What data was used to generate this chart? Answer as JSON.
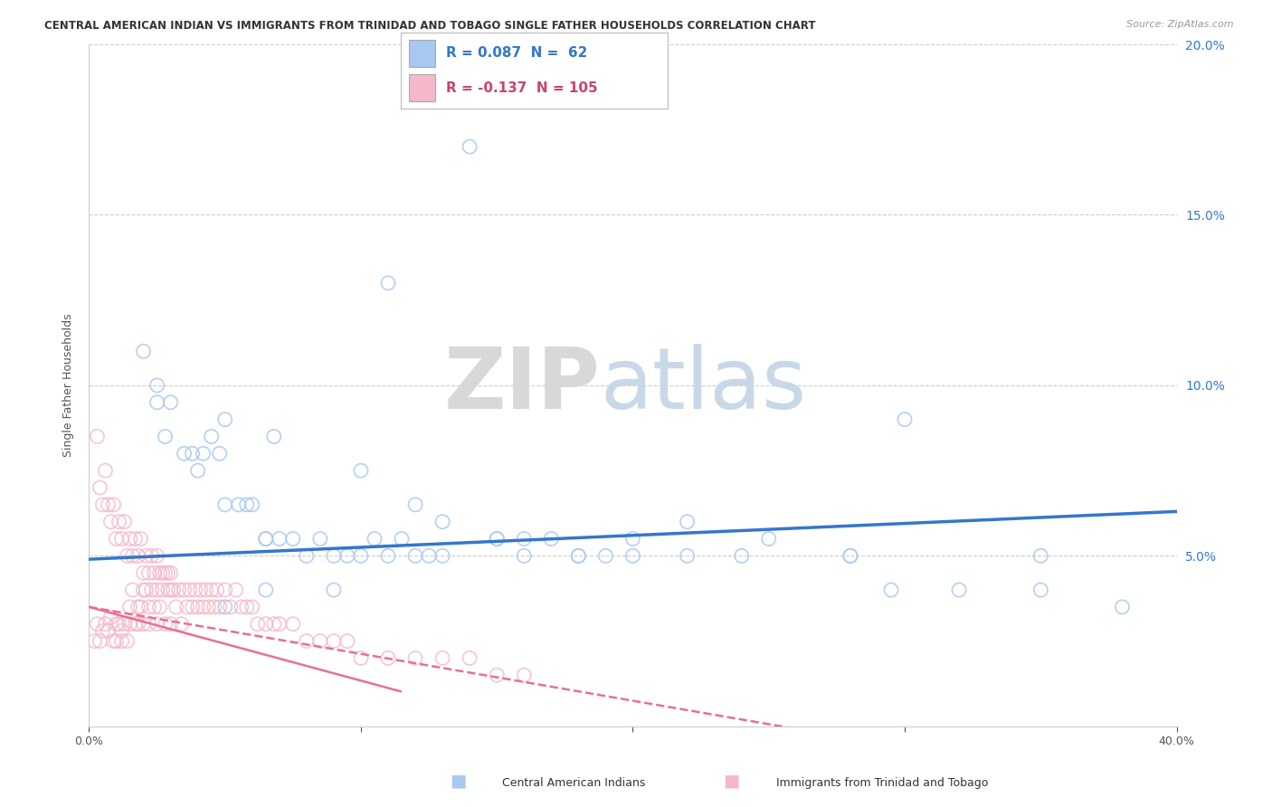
{
  "title": "CENTRAL AMERICAN INDIAN VS IMMIGRANTS FROM TRINIDAD AND TOBAGO SINGLE FATHER HOUSEHOLDS CORRELATION CHART",
  "source": "Source: ZipAtlas.com",
  "ylabel": "Single Father Households",
  "xlim": [
    0.0,
    0.4
  ],
  "ylim": [
    0.0,
    0.2
  ],
  "xticks": [
    0.0,
    0.1,
    0.2,
    0.3,
    0.4
  ],
  "xticklabels": [
    "0.0%",
    "",
    "",
    "",
    "40.0%"
  ],
  "yticks": [
    0.0,
    0.05,
    0.1,
    0.15,
    0.2
  ],
  "yticklabels_right": [
    "",
    "5.0%",
    "10.0%",
    "15.0%",
    "20.0%"
  ],
  "blue_R": 0.087,
  "blue_N": 62,
  "pink_R": -0.137,
  "pink_N": 105,
  "blue_color": "#a8c8f0",
  "pink_color": "#f4b8c8",
  "blue_line_color": "#3377cc",
  "pink_line_color": "#e87090",
  "watermark_zip": "ZIP",
  "watermark_atlas": "atlas",
  "legend_label_blue": "Central American Indians",
  "legend_label_pink": "Immigrants from Trinidad and Tobago",
  "background_color": "#ffffff",
  "blue_scatter_x": [
    0.02,
    0.025,
    0.025,
    0.028,
    0.03,
    0.035,
    0.038,
    0.04,
    0.042,
    0.045,
    0.048,
    0.05,
    0.05,
    0.055,
    0.058,
    0.06,
    0.065,
    0.065,
    0.068,
    0.07,
    0.075,
    0.08,
    0.085,
    0.09,
    0.095,
    0.1,
    0.105,
    0.11,
    0.115,
    0.12,
    0.125,
    0.13,
    0.14,
    0.15,
    0.16,
    0.17,
    0.18,
    0.19,
    0.2,
    0.22,
    0.25,
    0.28,
    0.3,
    0.35,
    0.1,
    0.12,
    0.13,
    0.15,
    0.16,
    0.18,
    0.2,
    0.22,
    0.24,
    0.28,
    0.295,
    0.32,
    0.35,
    0.38,
    0.05,
    0.065,
    0.09,
    0.11
  ],
  "blue_scatter_y": [
    0.11,
    0.1,
    0.095,
    0.085,
    0.095,
    0.08,
    0.08,
    0.075,
    0.08,
    0.085,
    0.08,
    0.09,
    0.065,
    0.065,
    0.065,
    0.065,
    0.055,
    0.055,
    0.085,
    0.055,
    0.055,
    0.05,
    0.055,
    0.05,
    0.05,
    0.075,
    0.055,
    0.13,
    0.055,
    0.065,
    0.05,
    0.05,
    0.17,
    0.055,
    0.055,
    0.055,
    0.05,
    0.05,
    0.05,
    0.06,
    0.055,
    0.05,
    0.09,
    0.05,
    0.05,
    0.05,
    0.06,
    0.055,
    0.05,
    0.05,
    0.055,
    0.05,
    0.05,
    0.05,
    0.04,
    0.04,
    0.04,
    0.035,
    0.035,
    0.04,
    0.04,
    0.05
  ],
  "pink_scatter_x": [
    0.002,
    0.003,
    0.004,
    0.005,
    0.006,
    0.007,
    0.008,
    0.009,
    0.01,
    0.01,
    0.011,
    0.012,
    0.012,
    0.013,
    0.014,
    0.015,
    0.015,
    0.016,
    0.017,
    0.018,
    0.018,
    0.019,
    0.02,
    0.02,
    0.021,
    0.022,
    0.022,
    0.023,
    0.024,
    0.025,
    0.025,
    0.026,
    0.027,
    0.028,
    0.029,
    0.03,
    0.03,
    0.031,
    0.032,
    0.033,
    0.034,
    0.035,
    0.036,
    0.037,
    0.038,
    0.039,
    0.04,
    0.041,
    0.042,
    0.043,
    0.044,
    0.045,
    0.046,
    0.047,
    0.048,
    0.05,
    0.052,
    0.054,
    0.056,
    0.058,
    0.06,
    0.062,
    0.065,
    0.068,
    0.07,
    0.075,
    0.08,
    0.085,
    0.09,
    0.095,
    0.1,
    0.11,
    0.12,
    0.13,
    0.14,
    0.15,
    0.16,
    0.003,
    0.004,
    0.005,
    0.006,
    0.007,
    0.008,
    0.009,
    0.01,
    0.011,
    0.012,
    0.013,
    0.014,
    0.015,
    0.016,
    0.017,
    0.018,
    0.019,
    0.02,
    0.021,
    0.022,
    0.023,
    0.024,
    0.025,
    0.026,
    0.027,
    0.028,
    0.029,
    0.03
  ],
  "pink_scatter_y": [
    0.025,
    0.03,
    0.025,
    0.028,
    0.03,
    0.028,
    0.032,
    0.025,
    0.03,
    0.025,
    0.03,
    0.028,
    0.025,
    0.03,
    0.025,
    0.035,
    0.03,
    0.04,
    0.03,
    0.035,
    0.03,
    0.035,
    0.04,
    0.03,
    0.04,
    0.035,
    0.03,
    0.04,
    0.035,
    0.04,
    0.03,
    0.035,
    0.04,
    0.03,
    0.04,
    0.045,
    0.03,
    0.04,
    0.035,
    0.04,
    0.03,
    0.04,
    0.035,
    0.04,
    0.035,
    0.04,
    0.035,
    0.04,
    0.035,
    0.04,
    0.035,
    0.04,
    0.035,
    0.04,
    0.035,
    0.04,
    0.035,
    0.04,
    0.035,
    0.035,
    0.035,
    0.03,
    0.03,
    0.03,
    0.03,
    0.03,
    0.025,
    0.025,
    0.025,
    0.025,
    0.02,
    0.02,
    0.02,
    0.02,
    0.02,
    0.015,
    0.015,
    0.085,
    0.07,
    0.065,
    0.075,
    0.065,
    0.06,
    0.065,
    0.055,
    0.06,
    0.055,
    0.06,
    0.05,
    0.055,
    0.05,
    0.055,
    0.05,
    0.055,
    0.045,
    0.05,
    0.045,
    0.05,
    0.045,
    0.05,
    0.045,
    0.045,
    0.045,
    0.045,
    0.04
  ]
}
